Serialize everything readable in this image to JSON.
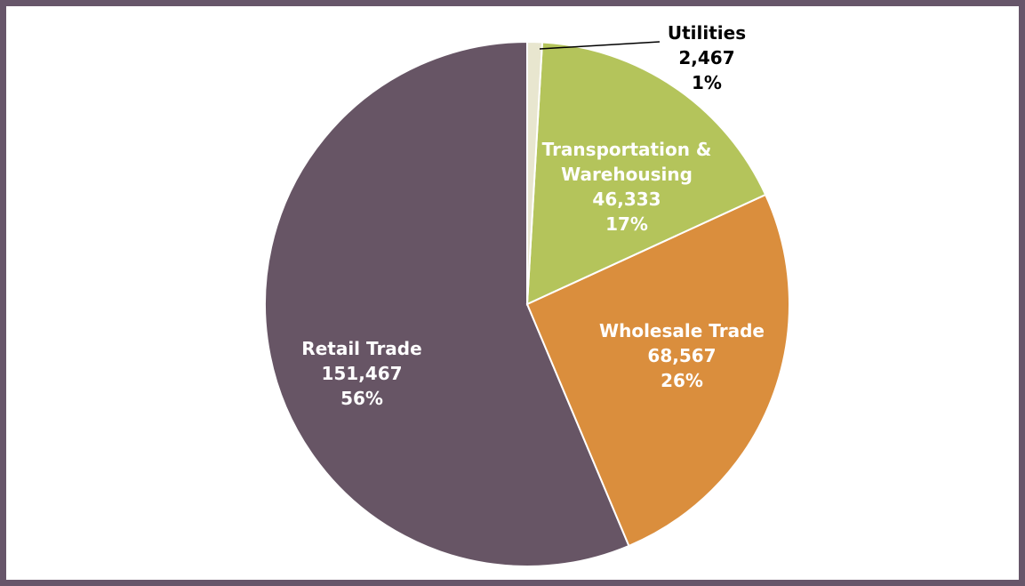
{
  "chart_data": {
    "type": "pie",
    "categories": [
      "Utilities",
      "Transportation & Warehousing",
      "Wholesale Trade",
      "Retail Trade"
    ],
    "values": [
      2467,
      46333,
      68567,
      151467
    ],
    "value_labels": [
      "2,467",
      "46,333",
      "68,567",
      "151,467"
    ],
    "percent_labels": [
      "1%",
      "17%",
      "26%",
      "56%"
    ],
    "colors": [
      "#e8e6cf",
      "#b4c45b",
      "#da8e3d",
      "#675565"
    ]
  }
}
